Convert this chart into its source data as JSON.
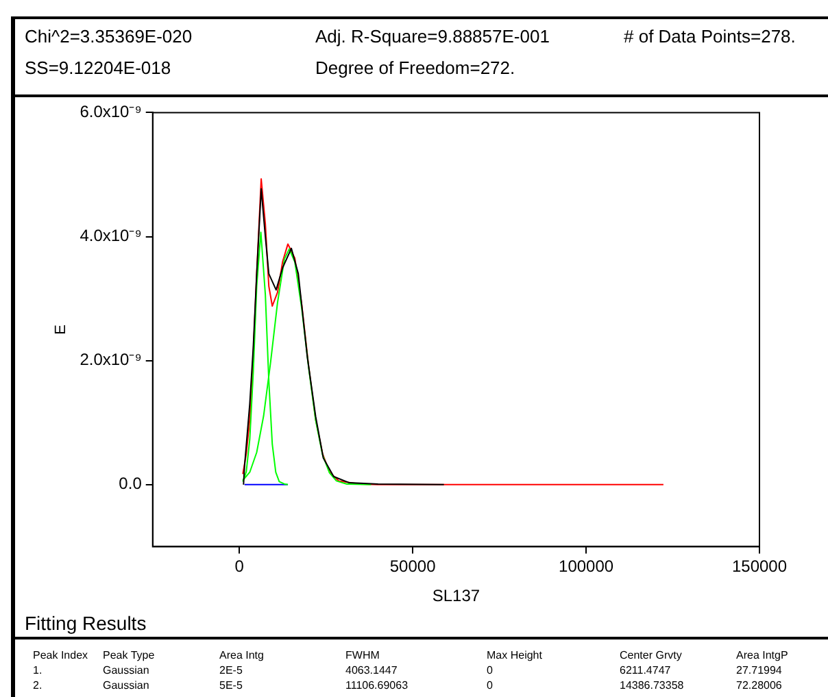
{
  "chart_data": {
    "type": "line",
    "xlabel": "SL137",
    "ylabel": "E",
    "xlim": [
      -25000,
      150000
    ],
    "xticks": [
      0,
      50000,
      100000,
      150000
    ],
    "ylim": [
      -1e-09,
      6e-09
    ],
    "yticks": [
      {
        "value": 0,
        "label": "0.0"
      },
      {
        "value": 2e-09,
        "label": "2.0x10⁻⁹"
      },
      {
        "value": 4e-09,
        "label": "4.0x10⁻⁹"
      },
      {
        "value": 6e-09,
        "label": "6.0x10⁻⁹"
      }
    ],
    "grid": false,
    "legend": false,
    "marker": "none",
    "line_style": "solid",
    "series": [
      {
        "color": "#000000",
        "x": [
          1200,
          1500,
          3000,
          4000,
          5000,
          6300,
          7500,
          8500,
          10600,
          12500,
          15000,
          17000,
          19600,
          22000,
          24200,
          27200,
          31700,
          40000,
          59000
        ],
        "values": [
          0,
          3e-10,
          1.3e-09,
          2.2e-09,
          3.4e-09,
          4.77e-09,
          4e-09,
          3.4e-09,
          3.14e-09,
          3.5e-09,
          3.81e-09,
          3.4e-09,
          2.06e-09,
          1.1e-09,
          4.3e-10,
          1.3e-10,
          3e-11,
          1e-11,
          0
        ]
      },
      {
        "color": "#00ff00",
        "x": [
          1000,
          2000,
          3000,
          4000,
          5000,
          6200,
          7500,
          8500,
          9500,
          10500,
          11500,
          13000,
          14000
        ],
        "values": [
          5e-11,
          2.1e-10,
          7.3e-10,
          1.8e-09,
          3.2e-09,
          4.07e-09,
          3.06e-09,
          1.67e-09,
          6.5e-10,
          2e-10,
          5e-11,
          1e-11,
          0
        ]
      },
      {
        "color": "#00ff00",
        "x": [
          1000,
          3000,
          5000,
          7000,
          9000,
          11000,
          13000,
          14400,
          16000,
          18000,
          20000,
          22000,
          24000,
          26000,
          28000,
          31000,
          38000
        ],
        "values": [
          7e-11,
          2e-10,
          5.2e-10,
          1.11e-09,
          1.97e-09,
          2.93e-09,
          3.64e-09,
          3.8e-09,
          3.59e-09,
          2.84e-09,
          1.88e-09,
          1.04e-09,
          4.8e-10,
          1.9e-10,
          6e-11,
          1e-11,
          0
        ]
      },
      {
        "color": "#0000ff",
        "x": [
          1500,
          14000
        ],
        "values": [
          0,
          0
        ]
      },
      {
        "color": "#ff0000",
        "x": [
          1000,
          2000,
          3000,
          4000,
          5000,
          6300,
          7500,
          8500,
          9500,
          11000,
          12500,
          14000,
          16000,
          18000,
          20000,
          22000,
          24000,
          26000,
          28700,
          34700,
          40000,
          122300
        ],
        "values": [
          1.7e-10,
          5e-10,
          1.05e-09,
          2.1e-09,
          3.4e-09,
          4.93e-09,
          4.2e-09,
          3.2e-09,
          2.88e-09,
          3.1e-09,
          3.6e-09,
          3.88e-09,
          3.65e-09,
          2.9e-09,
          1.9e-09,
          1.05e-09,
          5e-10,
          2e-10,
          6e-11,
          1e-11,
          0,
          0
        ]
      }
    ],
    "annotations": [
      "Chi^2=3.35369E-020",
      "Adj. R-Square=9.88857E-001",
      "# of Data Points=278.",
      "SS=9.12204E-018",
      "Degree of Freedom=272.",
      "Fitting Results",
      "Peak Index",
      "Peak Type",
      "Area Intg",
      "FWHM",
      "Max Height",
      "Center Grvty",
      "Area IntgP",
      "1.",
      "Gaussian",
      "2E-5",
      "4063.1447",
      "0",
      "6211.4747",
      "27.71994",
      "2.",
      "Gaussian",
      "5E-5",
      "11106.69063",
      "0",
      "14386.73358",
      "72.28006"
    ]
  }
}
